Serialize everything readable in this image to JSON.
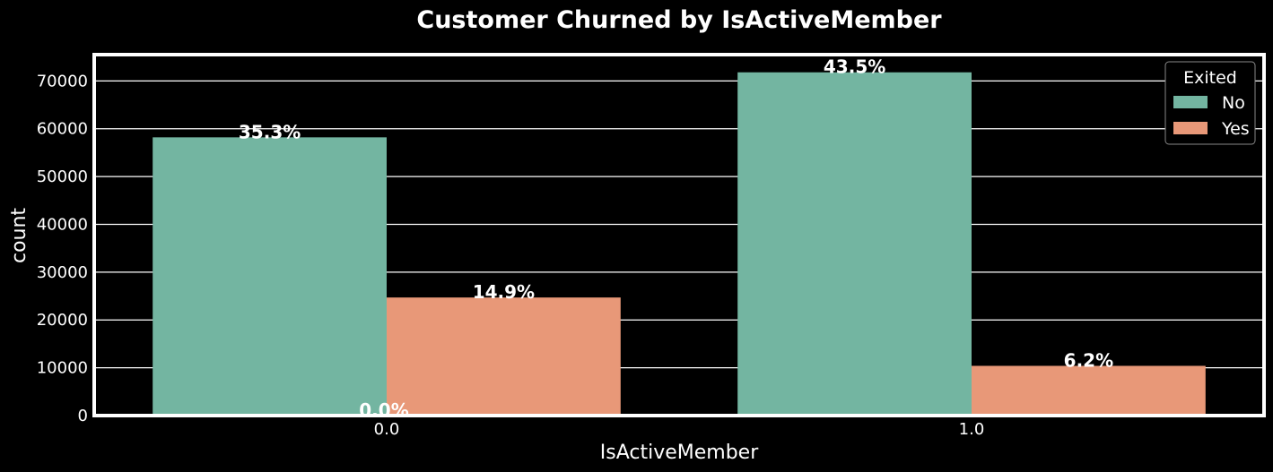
{
  "chart_data": {
    "type": "bar",
    "title": "Customer Churned by IsActiveMember",
    "xlabel": "IsActiveMember",
    "ylabel": "count",
    "categories": [
      "0.0",
      "1.0"
    ],
    "series": [
      {
        "name": "No",
        "values": [
          58200,
          71800
        ],
        "color": "#73b5a1"
      },
      {
        "name": "Yes",
        "values": [
          24700,
          10400
        ],
        "color": "#e89878"
      }
    ],
    "bar_labels": [
      {
        "text": "35.3%",
        "series": 0,
        "category": 0,
        "y": 58200
      },
      {
        "text": "14.9%",
        "series": 1,
        "category": 0,
        "y": 24700
      },
      {
        "text": "43.5%",
        "series": 0,
        "category": 1,
        "y": 71800
      },
      {
        "text": "6.2%",
        "series": 1,
        "category": 1,
        "y": 10400
      },
      {
        "text": "0.0%",
        "series": -1,
        "category": 0,
        "y": 0
      }
    ],
    "ylim": [
      0,
      75500
    ],
    "yticks": [
      0,
      10000,
      20000,
      30000,
      40000,
      50000,
      60000,
      70000
    ],
    "grid": true,
    "legend": {
      "title": "Exited",
      "position": "top-right"
    },
    "colors": {
      "background": "#000000",
      "frame": "#ffffff",
      "grid": "#ffffff",
      "text": "#ffffff"
    }
  }
}
